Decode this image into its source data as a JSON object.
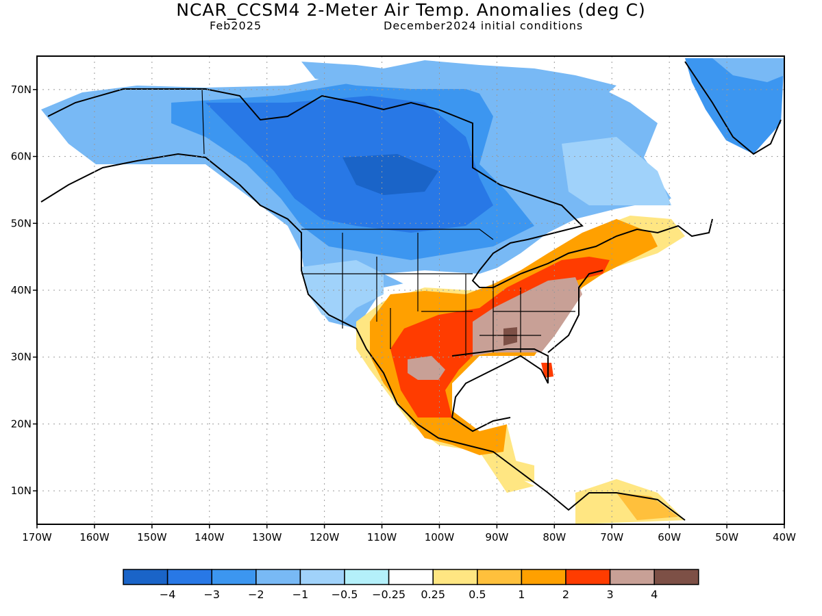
{
  "title": "NCAR_CCSM4 2-Meter Air Temp. Anomalies (deg C)",
  "subtitle_left": "Feb2025",
  "subtitle_right": "December2024 initial conditions",
  "map": {
    "lon_labels": [
      "170W",
      "160W",
      "150W",
      "140W",
      "130W",
      "120W",
      "110W",
      "100W",
      "90W",
      "80W",
      "70W",
      "60W",
      "50W",
      "40W"
    ],
    "lat_labels": [
      "70N",
      "60N",
      "50N",
      "40N",
      "30N",
      "20N",
      "10N"
    ],
    "lon_range": [
      -170,
      -40
    ],
    "lat_range": [
      5,
      75
    ]
  },
  "colorbar": {
    "colors": [
      "#1a64c8",
      "#2878e6",
      "#3c96f0",
      "#78b9f5",
      "#a0d2fa",
      "#b4f0fa",
      "#ffffff",
      "#ffe682",
      "#ffc03c",
      "#ffa000",
      "#ff3c00",
      "#c8a096",
      "#7d5046"
    ],
    "labels": [
      "-4",
      "-3",
      "-2",
      "-1",
      "-0.5",
      "-0.25",
      "0.25",
      "0.5",
      "1",
      "2",
      "3",
      "4"
    ]
  }
}
